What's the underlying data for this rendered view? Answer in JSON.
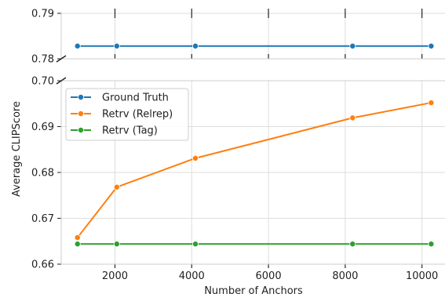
{
  "chart_data": {
    "type": "line",
    "xlabel": "Number of Anchors",
    "ylabel": "Average CLIPScore",
    "xlim": [
      600,
      10600
    ],
    "x_ticks": [
      "2000",
      "4000",
      "6000",
      "8000",
      "10000"
    ],
    "top_panel": {
      "ylim": [
        0.78,
        0.79
      ],
      "y_ticks": [
        "0.79",
        "0.78"
      ]
    },
    "bottom_panel": {
      "ylim": [
        0.66,
        0.7
      ],
      "y_ticks": [
        "0.70",
        "0.69",
        "0.68",
        "0.67",
        "0.66"
      ]
    },
    "broken_axis": true,
    "grid": true,
    "legend_position": "upper-left",
    "series": [
      {
        "name": "Ground Truth",
        "color": "#1f77b4",
        "panel": "top",
        "x": [
          1024,
          2048,
          4096,
          8192,
          10240
        ],
        "y": [
          0.7828,
          0.7828,
          0.7828,
          0.7828,
          0.7828
        ]
      },
      {
        "name": "Retrv (Relrep)",
        "color": "#ff7f0e",
        "panel": "bottom",
        "x": [
          1024,
          2048,
          4096,
          8192,
          10240
        ],
        "y": [
          0.6658,
          0.6768,
          0.6831,
          0.6919,
          0.6952
        ]
      },
      {
        "name": "Retrv (Tag)",
        "color": "#2ca02c",
        "panel": "bottom",
        "x": [
          1024,
          2048,
          4096,
          8192,
          10240
        ],
        "y": [
          0.6644,
          0.6644,
          0.6644,
          0.6644,
          0.6644
        ]
      }
    ]
  }
}
